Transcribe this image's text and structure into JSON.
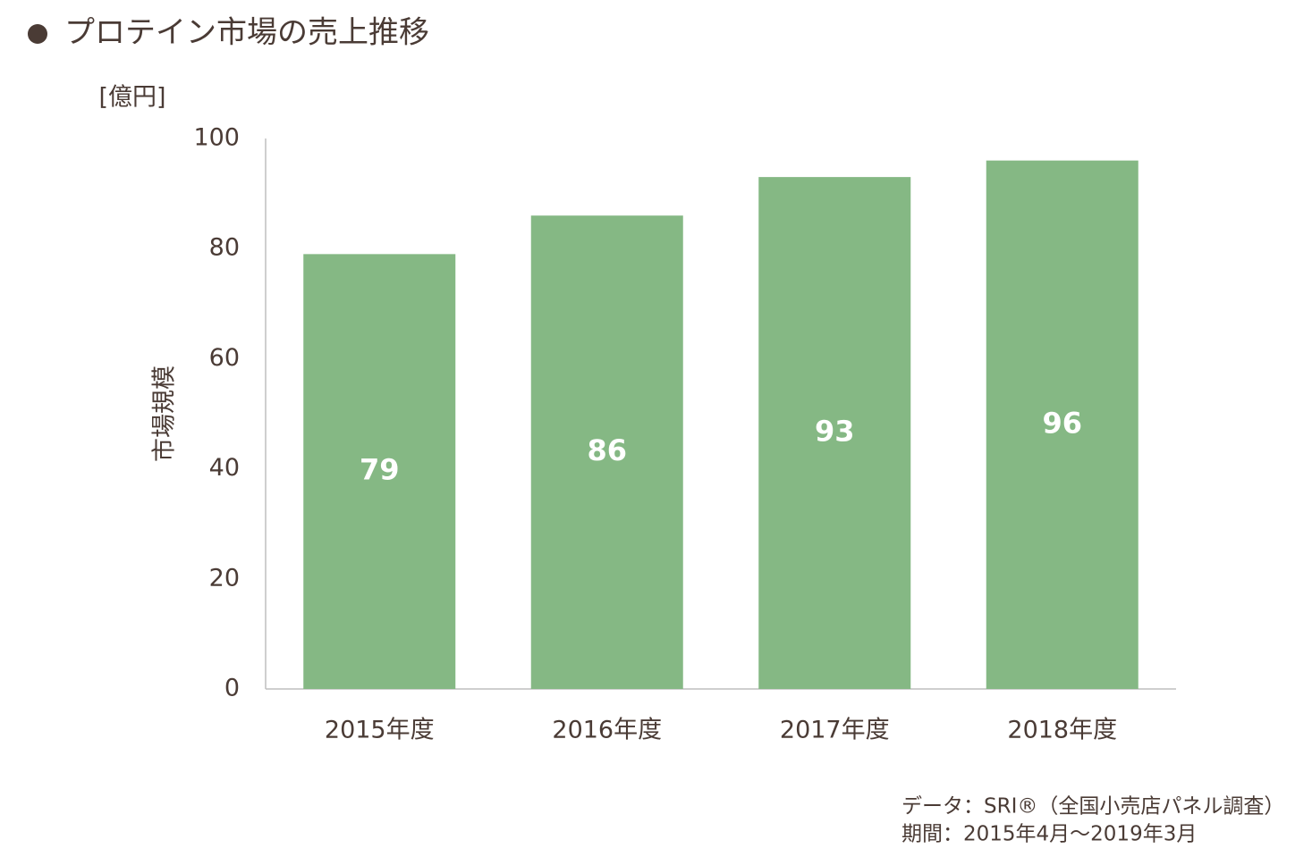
{
  "chart_data": {
    "type": "bar",
    "title": "プロテイン市場の売上推移",
    "y_unit": "[億円]",
    "ylabel": "市場規模",
    "categories": [
      "2015年度",
      "2016年度",
      "2017年度",
      "2018年度"
    ],
    "values": [
      79,
      86,
      93,
      96
    ],
    "color": "#85b884",
    "ylim": [
      0,
      100
    ],
    "yticks": [
      0,
      20,
      40,
      60,
      80,
      100
    ],
    "grid": false,
    "annotations": [
      "データ：SRI®（全国小売店パネル調査）",
      "期間：2015年4月～2019年3月"
    ]
  }
}
